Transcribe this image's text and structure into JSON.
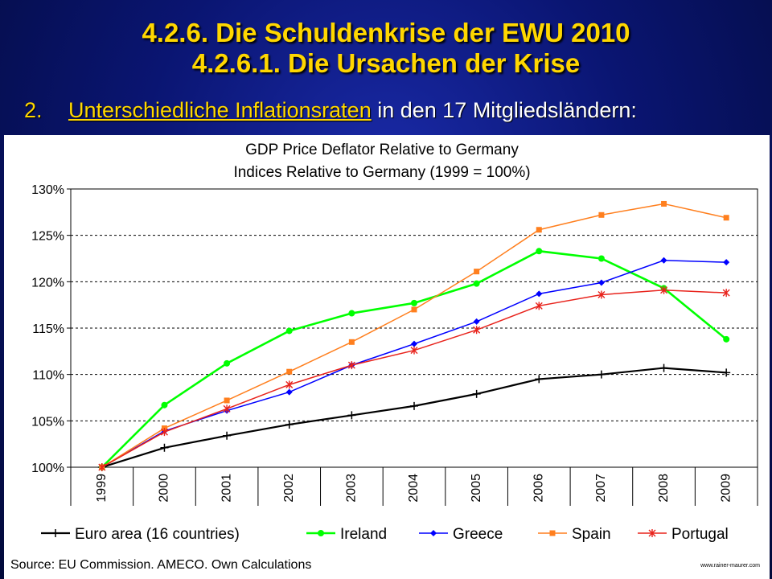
{
  "slide": {
    "title_line1": "4.2.6. Die Schuldenkrise der EWU 2010",
    "title_line2": "4.2.6.1. Die Ursachen der Krise",
    "subtitle_number": "2.",
    "subtitle_highlight": "Unterschiedliche Inflationsraten",
    "subtitle_rest": " in den 17 Mitgliedsländern:",
    "source": "Source: EU Commission. AMECO. Own Calculations",
    "url": "www.rainer-maurer.com"
  },
  "colors": {
    "title": "#ffd700",
    "background": "#0a1572",
    "euro_area": "#000000",
    "ireland": "#00ff00",
    "greece": "#0000ff",
    "spain": "#ff7f1e",
    "portugal": "#e8231c"
  },
  "chart_data": {
    "type": "line",
    "title": "GDP Price Deflator Relative to Germany",
    "subtitle": "Indices Relative to Germany (1999 = 100%)",
    "x": [
      "1999",
      "2000",
      "2001",
      "2002",
      "2003",
      "2004",
      "2005",
      "2006",
      "2007",
      "2008",
      "2009"
    ],
    "ylim": [
      100,
      130
    ],
    "yticks": [
      "100%",
      "105%",
      "110%",
      "115%",
      "120%",
      "125%",
      "130%"
    ],
    "grid": "horizontal dashed",
    "legend_position": "bottom",
    "series": [
      {
        "name": "Euro area (16 countries)",
        "color": "#000000",
        "marker": "plus",
        "values": [
          100,
          102.1,
          103.4,
          104.6,
          105.6,
          106.6,
          107.9,
          109.5,
          110.0,
          110.7,
          110.2
        ]
      },
      {
        "name": "Ireland",
        "color": "#00ff00",
        "marker": "circle",
        "values": [
          100,
          106.7,
          111.2,
          114.7,
          116.6,
          117.7,
          119.8,
          123.3,
          122.5,
          119.3,
          113.8
        ]
      },
      {
        "name": "Greece",
        "color": "#0000ff",
        "marker": "diamond",
        "values": [
          100,
          103.9,
          106.1,
          108.1,
          111.0,
          113.3,
          115.7,
          118.7,
          119.9,
          122.3,
          122.1
        ]
      },
      {
        "name": "Spain",
        "color": "#ff7f1e",
        "marker": "square",
        "values": [
          100,
          104.2,
          107.2,
          110.3,
          113.5,
          117.0,
          121.1,
          125.6,
          127.2,
          128.4,
          126.9
        ]
      },
      {
        "name": "Portugal",
        "color": "#e8231c",
        "marker": "star",
        "values": [
          100,
          103.8,
          106.3,
          108.9,
          111.0,
          112.6,
          114.8,
          117.4,
          118.6,
          119.1,
          118.8
        ]
      }
    ]
  }
}
